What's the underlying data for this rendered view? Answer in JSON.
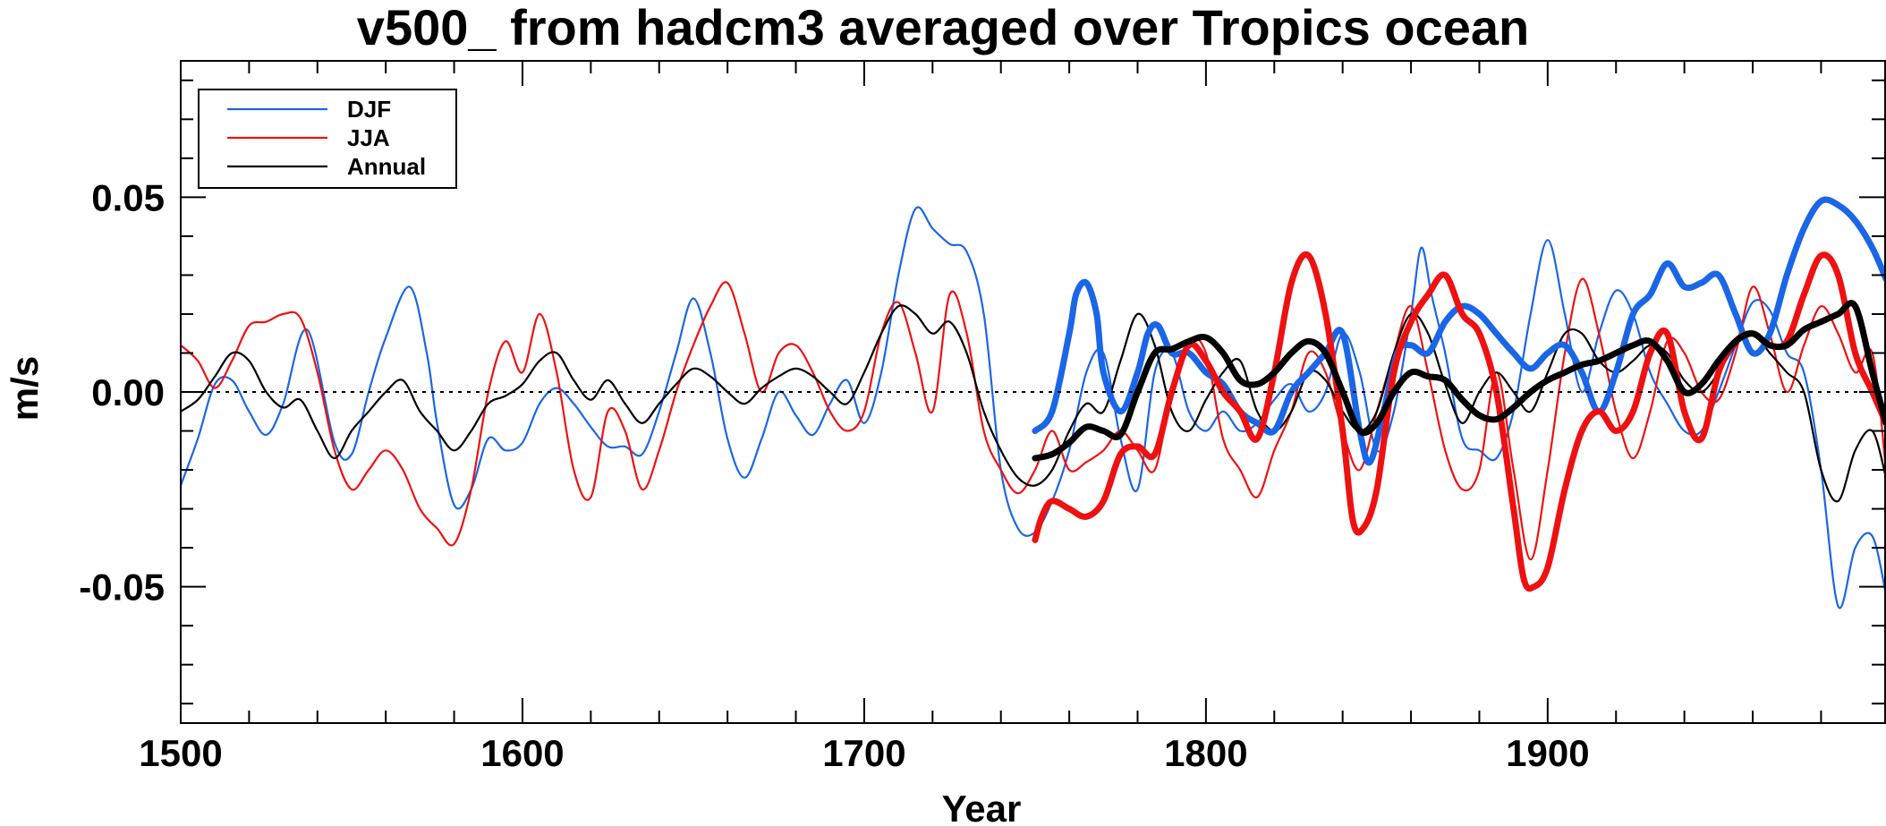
{
  "chart_data": {
    "type": "line",
    "title": "v500_ from hadcm3 averaged over Tropics ocean",
    "xlabel": "Year",
    "ylabel": "m/s",
    "xlim": [
      1500,
      1999
    ],
    "ylim": [
      -0.085,
      0.085
    ],
    "x_ticks": [
      1500,
      1600,
      1700,
      1800,
      1900
    ],
    "x_tick_labels": [
      "1500",
      "1600",
      "1700",
      "1800",
      "1900"
    ],
    "y_ticks": [
      -0.05,
      0.0,
      0.05
    ],
    "y_tick_labels": [
      "-0.05",
      "0.00",
      "0.05"
    ],
    "zero_line": true,
    "legend_position": "top-left",
    "legend": [
      "DJF",
      "JJA",
      "Annual"
    ],
    "colors": {
      "DJF": "#1a66e6",
      "JJA": "#ee1111",
      "Annual": "#000000"
    },
    "series": [
      {
        "name": "DJF",
        "style": "thin",
        "color": "#1a66e6",
        "x": [
          1500,
          1505,
          1510,
          1515,
          1520,
          1525,
          1530,
          1537,
          1545,
          1550,
          1555,
          1560,
          1567,
          1572,
          1575,
          1580,
          1585,
          1590,
          1595,
          1600,
          1605,
          1610,
          1615,
          1620,
          1625,
          1630,
          1635,
          1640,
          1645,
          1650,
          1655,
          1660,
          1665,
          1670,
          1675,
          1680,
          1685,
          1690,
          1695,
          1700,
          1705,
          1710,
          1715,
          1720,
          1725,
          1730,
          1735,
          1740,
          1745,
          1750,
          1755,
          1760,
          1765,
          1770,
          1775,
          1780,
          1785,
          1790,
          1795,
          1800,
          1805,
          1810,
          1815,
          1820,
          1825,
          1830,
          1835,
          1840,
          1845,
          1850,
          1855,
          1860,
          1863,
          1866,
          1870,
          1875,
          1880,
          1885,
          1890,
          1895,
          1900,
          1905,
          1910,
          1915,
          1920,
          1925,
          1930,
          1935,
          1940,
          1945,
          1950,
          1955,
          1960,
          1965,
          1970,
          1975,
          1980,
          1985,
          1990,
          1995,
          1999
        ],
        "y": [
          -0.024,
          -0.012,
          0.002,
          0.003,
          -0.005,
          -0.011,
          -0.003,
          0.016,
          -0.013,
          -0.016,
          0.0,
          0.014,
          0.027,
          0.01,
          -0.008,
          -0.029,
          -0.025,
          -0.012,
          -0.015,
          -0.013,
          -0.003,
          0.001,
          -0.003,
          -0.009,
          -0.014,
          -0.014,
          -0.016,
          -0.005,
          0.01,
          0.024,
          0.01,
          -0.012,
          -0.022,
          -0.012,
          0.0,
          -0.006,
          -0.011,
          -0.003,
          0.003,
          -0.008,
          0.005,
          0.03,
          0.047,
          0.042,
          0.038,
          0.036,
          0.02,
          -0.02,
          -0.035,
          -0.036,
          -0.028,
          -0.015,
          0.005,
          0.01,
          -0.012,
          -0.025,
          0.005,
          0.01,
          -0.005,
          -0.01,
          -0.005,
          -0.01,
          -0.008,
          -0.002,
          0.002,
          -0.005,
          0.0,
          0.015,
          0.005,
          -0.015,
          -0.005,
          0.02,
          0.037,
          0.025,
          0.01,
          -0.012,
          -0.015,
          -0.017,
          -0.005,
          0.02,
          0.039,
          0.02,
          0.0,
          0.015,
          0.026,
          0.02,
          0.005,
          -0.003,
          -0.01,
          -0.01,
          0.0,
          0.012,
          0.023,
          0.021,
          0.01,
          0.005,
          -0.02,
          -0.055,
          -0.04,
          -0.037,
          -0.052
        ]
      },
      {
        "name": "JJA",
        "style": "thin",
        "color": "#ee1111",
        "x": [
          1500,
          1505,
          1510,
          1515,
          1520,
          1525,
          1530,
          1535,
          1540,
          1545,
          1550,
          1555,
          1560,
          1565,
          1570,
          1575,
          1580,
          1585,
          1590,
          1595,
          1600,
          1605,
          1610,
          1615,
          1620,
          1625,
          1630,
          1635,
          1640,
          1645,
          1650,
          1655,
          1660,
          1665,
          1670,
          1675,
          1680,
          1685,
          1690,
          1695,
          1700,
          1705,
          1710,
          1715,
          1720,
          1725,
          1730,
          1735,
          1740,
          1745,
          1750,
          1755,
          1760,
          1765,
          1770,
          1775,
          1780,
          1785,
          1790,
          1795,
          1800,
          1805,
          1810,
          1815,
          1820,
          1825,
          1830,
          1835,
          1840,
          1845,
          1850,
          1855,
          1860,
          1865,
          1870,
          1875,
          1880,
          1885,
          1890,
          1895,
          1900,
          1905,
          1910,
          1915,
          1920,
          1925,
          1930,
          1935,
          1940,
          1945,
          1950,
          1955,
          1960,
          1965,
          1970,
          1975,
          1980,
          1985,
          1990,
          1995,
          1999
        ],
        "y": [
          0.012,
          0.008,
          0.001,
          0.008,
          0.017,
          0.018,
          0.02,
          0.019,
          0.005,
          -0.015,
          -0.025,
          -0.02,
          -0.015,
          -0.02,
          -0.03,
          -0.035,
          -0.039,
          -0.025,
          0.0,
          0.013,
          0.005,
          0.02,
          0.005,
          -0.02,
          -0.027,
          -0.005,
          -0.01,
          -0.025,
          -0.015,
          0.0,
          0.012,
          0.022,
          0.028,
          0.015,
          0.0,
          0.01,
          0.012,
          0.005,
          -0.005,
          -0.01,
          -0.005,
          0.015,
          0.023,
          0.01,
          -0.005,
          0.025,
          0.015,
          -0.01,
          -0.02,
          -0.026,
          -0.02,
          -0.01,
          -0.02,
          -0.018,
          -0.015,
          -0.01,
          -0.015,
          -0.02,
          0.0,
          0.013,
          0.01,
          -0.012,
          -0.02,
          -0.027,
          -0.015,
          -0.005,
          0.01,
          0.005,
          -0.01,
          -0.02,
          -0.005,
          0.01,
          0.022,
          0.005,
          -0.015,
          -0.025,
          -0.02,
          0.005,
          -0.02,
          -0.043,
          -0.02,
          0.01,
          0.029,
          0.015,
          -0.005,
          -0.017,
          -0.005,
          0.013,
          0.01,
          0.0,
          -0.002,
          0.01,
          0.027,
          0.015,
          0.0,
          0.012,
          0.022,
          0.015,
          0.005,
          0.01,
          -0.02
        ]
      },
      {
        "name": "Annual",
        "style": "thin",
        "color": "#000000",
        "x": [
          1500,
          1505,
          1510,
          1515,
          1520,
          1525,
          1530,
          1535,
          1540,
          1545,
          1550,
          1555,
          1560,
          1565,
          1570,
          1575,
          1580,
          1585,
          1590,
          1595,
          1600,
          1605,
          1610,
          1615,
          1620,
          1625,
          1630,
          1635,
          1640,
          1645,
          1650,
          1655,
          1660,
          1665,
          1670,
          1675,
          1680,
          1685,
          1690,
          1695,
          1700,
          1705,
          1710,
          1715,
          1720,
          1725,
          1730,
          1735,
          1740,
          1745,
          1750,
          1755,
          1760,
          1765,
          1770,
          1775,
          1780,
          1785,
          1790,
          1795,
          1800,
          1805,
          1810,
          1815,
          1820,
          1825,
          1830,
          1835,
          1840,
          1845,
          1850,
          1855,
          1860,
          1865,
          1870,
          1875,
          1880,
          1885,
          1890,
          1895,
          1900,
          1905,
          1910,
          1915,
          1920,
          1925,
          1930,
          1935,
          1940,
          1945,
          1950,
          1955,
          1960,
          1965,
          1970,
          1975,
          1980,
          1985,
          1990,
          1995,
          1999
        ],
        "y": [
          -0.005,
          -0.002,
          0.004,
          0.01,
          0.008,
          0.0,
          -0.004,
          -0.002,
          -0.01,
          -0.017,
          -0.01,
          -0.005,
          0.0,
          0.003,
          -0.005,
          -0.01,
          -0.015,
          -0.01,
          -0.003,
          -0.001,
          0.002,
          0.008,
          0.01,
          0.003,
          -0.002,
          0.003,
          -0.003,
          -0.008,
          -0.003,
          0.002,
          0.006,
          0.004,
          0.0,
          -0.003,
          0.001,
          0.004,
          0.006,
          0.004,
          0.0,
          -0.003,
          0.005,
          0.015,
          0.022,
          0.02,
          0.015,
          0.018,
          0.01,
          -0.005,
          -0.015,
          -0.022,
          -0.024,
          -0.02,
          -0.01,
          -0.003,
          -0.005,
          0.008,
          0.02,
          0.012,
          -0.005,
          -0.01,
          -0.002,
          0.005,
          0.008,
          -0.005,
          -0.01,
          -0.005,
          0.005,
          0.003,
          -0.005,
          -0.01,
          -0.005,
          0.01,
          0.02,
          0.015,
          0.002,
          -0.008,
          0.0,
          0.005,
          0.0,
          -0.005,
          0.005,
          0.015,
          0.015,
          0.008,
          0.005,
          0.008,
          0.012,
          0.01,
          0.003,
          0.0,
          0.005,
          0.012,
          0.015,
          0.01,
          0.005,
          0.0,
          -0.02,
          -0.028,
          -0.015,
          -0.01,
          -0.022
        ]
      },
      {
        "name": "DJF smoothed",
        "style": "thick",
        "color": "#1a66e6",
        "x": [
          1750,
          1755,
          1760,
          1762,
          1765,
          1768,
          1770,
          1775,
          1780,
          1783,
          1786,
          1790,
          1795,
          1800,
          1805,
          1810,
          1815,
          1820,
          1825,
          1830,
          1835,
          1840,
          1845,
          1848,
          1852,
          1856,
          1860,
          1865,
          1870,
          1875,
          1880,
          1885,
          1890,
          1895,
          1900,
          1905,
          1910,
          1915,
          1920,
          1925,
          1930,
          1935,
          1940,
          1945,
          1950,
          1955,
          1960,
          1965,
          1970,
          1975,
          1980,
          1985,
          1990,
          1995,
          1999
        ],
        "y": [
          -0.01,
          -0.005,
          0.015,
          0.025,
          0.028,
          0.02,
          0.005,
          -0.005,
          0.005,
          0.015,
          0.017,
          0.01,
          0.01,
          0.005,
          0.002,
          -0.005,
          -0.008,
          -0.01,
          0.0,
          0.005,
          0.01,
          0.015,
          -0.01,
          -0.018,
          -0.005,
          0.01,
          0.012,
          0.01,
          0.018,
          0.022,
          0.02,
          0.015,
          0.01,
          0.006,
          0.01,
          0.012,
          0.005,
          -0.005,
          0.005,
          0.02,
          0.025,
          0.033,
          0.027,
          0.028,
          0.03,
          0.02,
          0.01,
          0.015,
          0.03,
          0.042,
          0.049,
          0.048,
          0.044,
          0.037,
          0.029
        ]
      },
      {
        "name": "JJA smoothed",
        "style": "thick",
        "color": "#ee1111",
        "x": [
          1750,
          1752,
          1755,
          1760,
          1765,
          1770,
          1775,
          1780,
          1785,
          1790,
          1795,
          1800,
          1805,
          1810,
          1815,
          1820,
          1825,
          1830,
          1835,
          1840,
          1843,
          1846,
          1850,
          1855,
          1860,
          1865,
          1870,
          1875,
          1880,
          1885,
          1890,
          1893,
          1896,
          1900,
          1905,
          1910,
          1915,
          1920,
          1925,
          1930,
          1935,
          1940,
          1945,
          1950,
          1955,
          1960,
          1965,
          1970,
          1975,
          1980,
          1985,
          1990,
          1995,
          1999
        ],
        "y": [
          -0.038,
          -0.032,
          -0.028,
          -0.03,
          -0.032,
          -0.028,
          -0.016,
          -0.014,
          -0.016,
          0.0,
          0.012,
          0.008,
          0.0,
          -0.005,
          -0.012,
          0.005,
          0.028,
          0.035,
          0.02,
          -0.01,
          -0.033,
          -0.035,
          -0.025,
          0.005,
          0.018,
          0.025,
          0.03,
          0.02,
          0.015,
          0.0,
          -0.03,
          -0.048,
          -0.05,
          -0.045,
          -0.025,
          -0.01,
          -0.005,
          -0.01,
          -0.005,
          0.01,
          0.015,
          -0.005,
          -0.012,
          0.005,
          0.013,
          0.015,
          0.012,
          0.013,
          0.025,
          0.035,
          0.03,
          0.01,
          0.0,
          -0.008
        ]
      },
      {
        "name": "Annual smoothed",
        "style": "thick",
        "color": "#000000",
        "x": [
          1750,
          1755,
          1760,
          1765,
          1770,
          1775,
          1780,
          1785,
          1790,
          1795,
          1800,
          1805,
          1810,
          1815,
          1820,
          1825,
          1830,
          1835,
          1840,
          1845,
          1850,
          1855,
          1860,
          1865,
          1870,
          1875,
          1880,
          1885,
          1890,
          1895,
          1900,
          1905,
          1910,
          1915,
          1920,
          1925,
          1930,
          1935,
          1940,
          1945,
          1950,
          1955,
          1960,
          1965,
          1970,
          1975,
          1980,
          1985,
          1990,
          1995,
          1999
        ],
        "y": [
          -0.017,
          -0.016,
          -0.013,
          -0.009,
          -0.01,
          -0.011,
          0.0,
          0.01,
          0.011,
          0.013,
          0.014,
          0.01,
          0.003,
          0.002,
          0.005,
          0.01,
          0.013,
          0.01,
          0.0,
          -0.01,
          -0.008,
          0.0,
          0.005,
          0.004,
          0.003,
          -0.002,
          -0.006,
          -0.007,
          -0.004,
          0.0,
          0.003,
          0.005,
          0.007,
          0.008,
          0.01,
          0.012,
          0.013,
          0.008,
          0.0,
          0.002,
          0.008,
          0.013,
          0.015,
          0.012,
          0.012,
          0.016,
          0.018,
          0.02,
          0.022,
          0.005,
          -0.008
        ]
      }
    ]
  }
}
